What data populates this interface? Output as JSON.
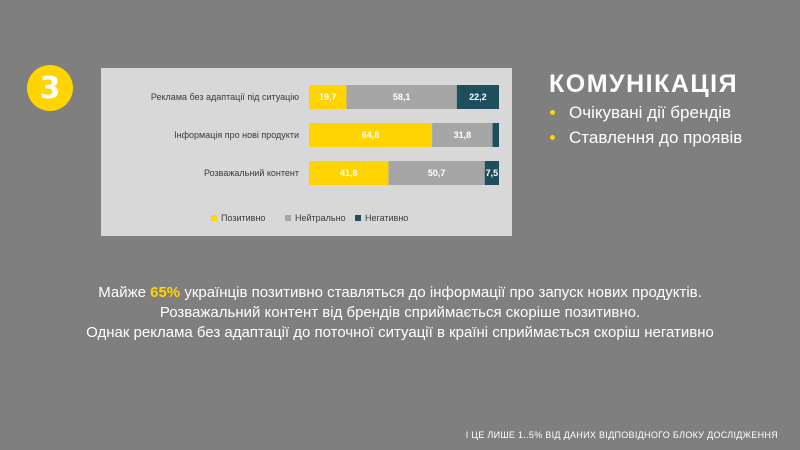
{
  "badge": {
    "number": "3"
  },
  "section": {
    "title": "КОМУНІКАЦІЯ",
    "bullets": [
      "Очікувані дії брендів",
      "Ставлення до проявів"
    ]
  },
  "chart_data": {
    "type": "bar",
    "orientation": "horizontal",
    "stacked": true,
    "categories": [
      "Реклама без адаптації під ситуацію",
      "Інформація про нові продукти",
      "Розважальний контент"
    ],
    "series": [
      {
        "name": "Позитивно",
        "color": "#ffd400",
        "label_color": "#ffffff",
        "values": [
          19.7,
          64.8,
          41.8
        ],
        "labels": [
          "19,7",
          "64,8",
          "41,8"
        ]
      },
      {
        "name": "Нейтрально",
        "color": "#a6a6a6",
        "label_color": "#ffffff",
        "values": [
          58.1,
          31.8,
          50.7
        ],
        "labels": [
          "58,1",
          "31,8",
          "50,7"
        ]
      },
      {
        "name": "Негативно",
        "color": "#1f4e5f",
        "label_color": "#ffffff",
        "values": [
          22.2,
          3.4,
          7.5
        ],
        "labels": [
          "22,2",
          "",
          "7,5"
        ]
      }
    ],
    "xlim": [
      0,
      100
    ],
    "legend_position": "bottom",
    "grid": false
  },
  "summary": {
    "line1_pre": "Майже ",
    "line1_highlight": "65%",
    "line1_post": " українців позитивно ставляться до інформації  про запуск нових продуктів.",
    "line2": "Розважальний контент від брендів сприймається скоріше позитивно.",
    "line3": "Однак реклама без адаптації до поточної ситуації в країні сприймається скоріш негативно"
  },
  "footer": {
    "text": "І ЦЕ ЛИШЕ 1..5% ВІД ДАНИХ ВІДПОВІДНОГО  БЛОКУ ДОСЛІДЖЕННЯ"
  }
}
